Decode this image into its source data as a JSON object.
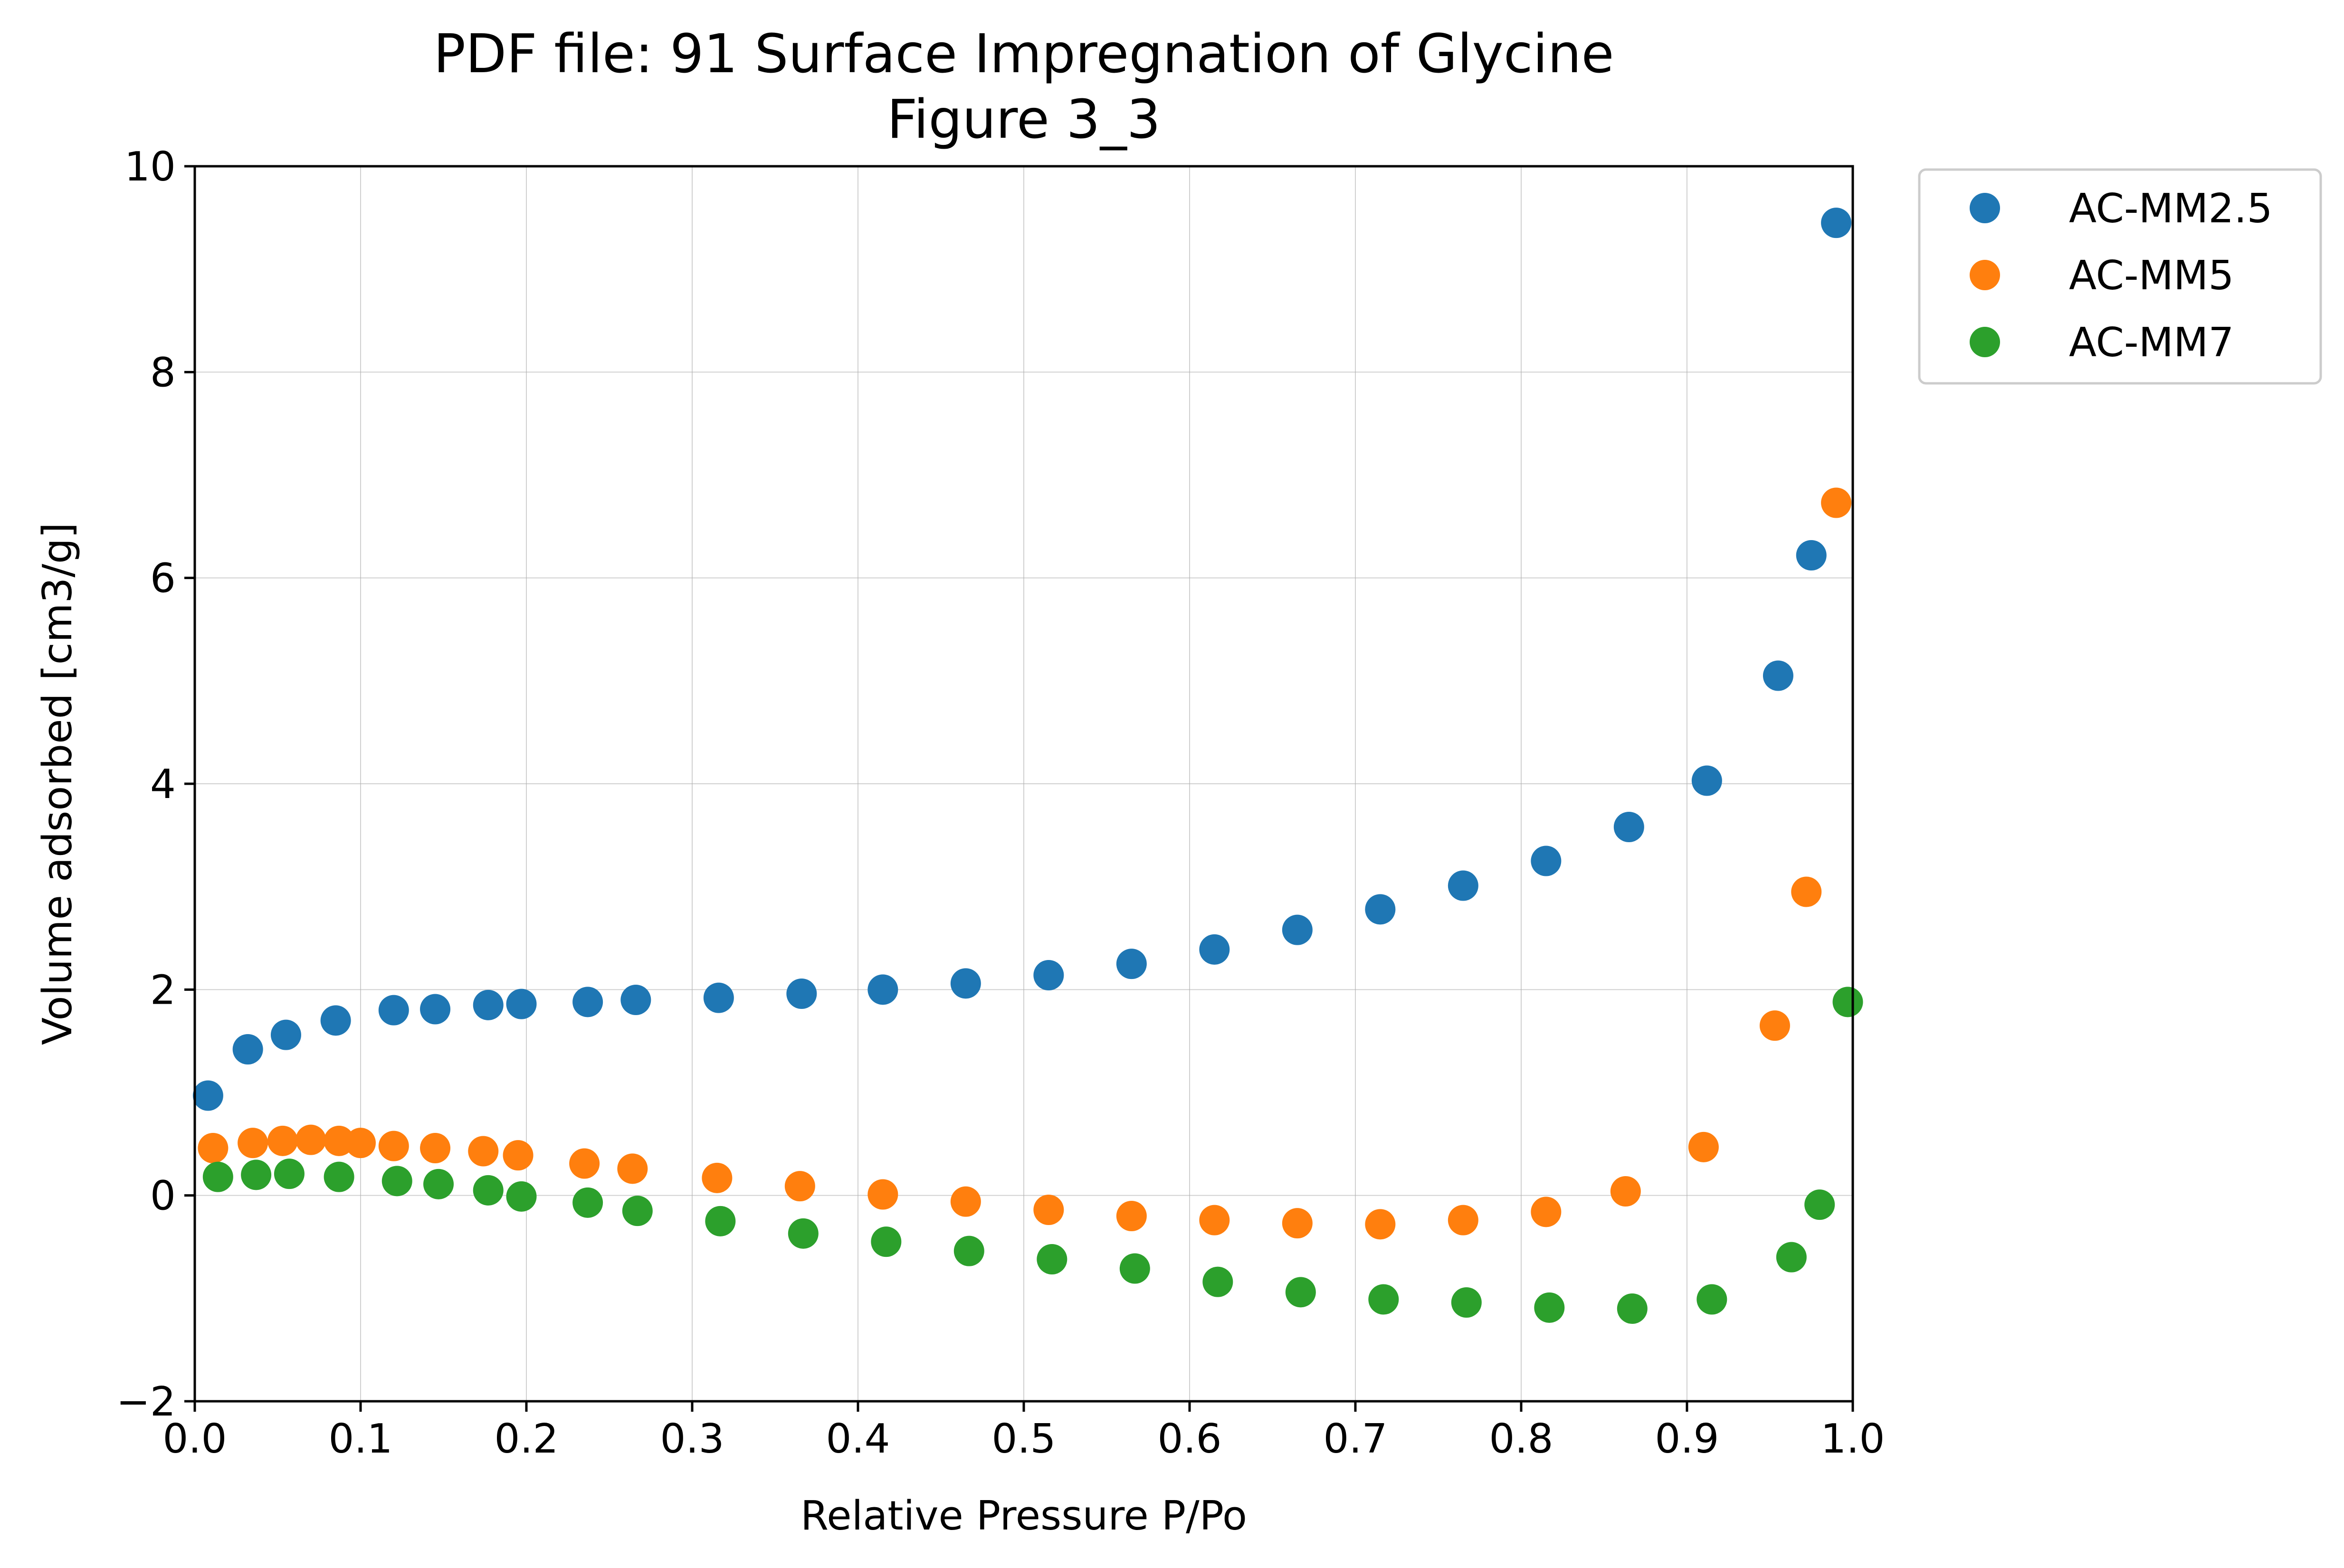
{
  "chart_data": {
    "type": "scatter",
    "title": "PDF file: 91 Surface Impregnation of Glycine",
    "subtitle": "Figure 3_3",
    "xlabel": "Relative Pressure P/Po",
    "ylabel": "Volume adsorbed [cm3/g]",
    "xlim": [
      0.0,
      1.0
    ],
    "ylim": [
      -2,
      10
    ],
    "xticks": [
      "0.0",
      "0.1",
      "0.2",
      "0.3",
      "0.4",
      "0.5",
      "0.6",
      "0.7",
      "0.8",
      "0.9",
      "1.0"
    ],
    "yticks": [
      "−2",
      "0",
      "2",
      "4",
      "6",
      "8",
      "10"
    ],
    "xtick_values": [
      0.0,
      0.1,
      0.2,
      0.3,
      0.4,
      0.5,
      0.6,
      0.7,
      0.8,
      0.9,
      1.0
    ],
    "ytick_values": [
      -2,
      0,
      2,
      4,
      6,
      8,
      10
    ],
    "grid": true,
    "legend_position": "outside-top-right",
    "series": [
      {
        "name": "AC-MM2.5",
        "color": "#1f77b4",
        "points": [
          [
            0.008,
            0.97
          ],
          [
            0.032,
            1.42
          ],
          [
            0.055,
            1.56
          ],
          [
            0.085,
            1.7
          ],
          [
            0.12,
            1.8
          ],
          [
            0.145,
            1.81
          ],
          [
            0.177,
            1.85
          ],
          [
            0.197,
            1.86
          ],
          [
            0.237,
            1.88
          ],
          [
            0.266,
            1.9
          ],
          [
            0.316,
            1.92
          ],
          [
            0.366,
            1.96
          ],
          [
            0.415,
            2.0
          ],
          [
            0.465,
            2.06
          ],
          [
            0.515,
            2.14
          ],
          [
            0.565,
            2.25
          ],
          [
            0.615,
            2.39
          ],
          [
            0.665,
            2.58
          ],
          [
            0.715,
            2.78
          ],
          [
            0.765,
            3.01
          ],
          [
            0.815,
            3.25
          ],
          [
            0.865,
            3.58
          ],
          [
            0.912,
            4.03
          ],
          [
            0.955,
            5.05
          ],
          [
            0.975,
            6.22
          ],
          [
            0.99,
            9.45
          ]
        ]
      },
      {
        "name": "AC-MM5",
        "color": "#ff7f0e",
        "points": [
          [
            0.011,
            0.46
          ],
          [
            0.035,
            0.51
          ],
          [
            0.053,
            0.53
          ],
          [
            0.07,
            0.54
          ],
          [
            0.087,
            0.53
          ],
          [
            0.1,
            0.51
          ],
          [
            0.12,
            0.48
          ],
          [
            0.145,
            0.46
          ],
          [
            0.174,
            0.43
          ],
          [
            0.195,
            0.39
          ],
          [
            0.235,
            0.31
          ],
          [
            0.264,
            0.26
          ],
          [
            0.315,
            0.17
          ],
          [
            0.365,
            0.09
          ],
          [
            0.415,
            0.01
          ],
          [
            0.465,
            -0.06
          ],
          [
            0.515,
            -0.14
          ],
          [
            0.565,
            -0.2
          ],
          [
            0.615,
            -0.24
          ],
          [
            0.665,
            -0.27
          ],
          [
            0.715,
            -0.28
          ],
          [
            0.765,
            -0.24
          ],
          [
            0.815,
            -0.16
          ],
          [
            0.863,
            0.04
          ],
          [
            0.91,
            0.47
          ],
          [
            0.953,
            1.65
          ],
          [
            0.972,
            2.95
          ],
          [
            0.99,
            6.73
          ]
        ]
      },
      {
        "name": "AC-MM7",
        "color": "#2ca02c",
        "points": [
          [
            0.014,
            0.18
          ],
          [
            0.037,
            0.2
          ],
          [
            0.057,
            0.21
          ],
          [
            0.087,
            0.18
          ],
          [
            0.122,
            0.14
          ],
          [
            0.147,
            0.11
          ],
          [
            0.177,
            0.05
          ],
          [
            0.197,
            -0.01
          ],
          [
            0.237,
            -0.07
          ],
          [
            0.267,
            -0.15
          ],
          [
            0.317,
            -0.25
          ],
          [
            0.367,
            -0.37
          ],
          [
            0.417,
            -0.45
          ],
          [
            0.467,
            -0.54
          ],
          [
            0.517,
            -0.62
          ],
          [
            0.567,
            -0.71
          ],
          [
            0.617,
            -0.84
          ],
          [
            0.667,
            -0.94
          ],
          [
            0.717,
            -1.01
          ],
          [
            0.767,
            -1.04
          ],
          [
            0.817,
            -1.09
          ],
          [
            0.867,
            -1.1
          ],
          [
            0.915,
            -1.01
          ],
          [
            0.963,
            -0.6
          ],
          [
            0.98,
            -0.09
          ],
          [
            0.997,
            1.88
          ]
        ]
      }
    ]
  }
}
